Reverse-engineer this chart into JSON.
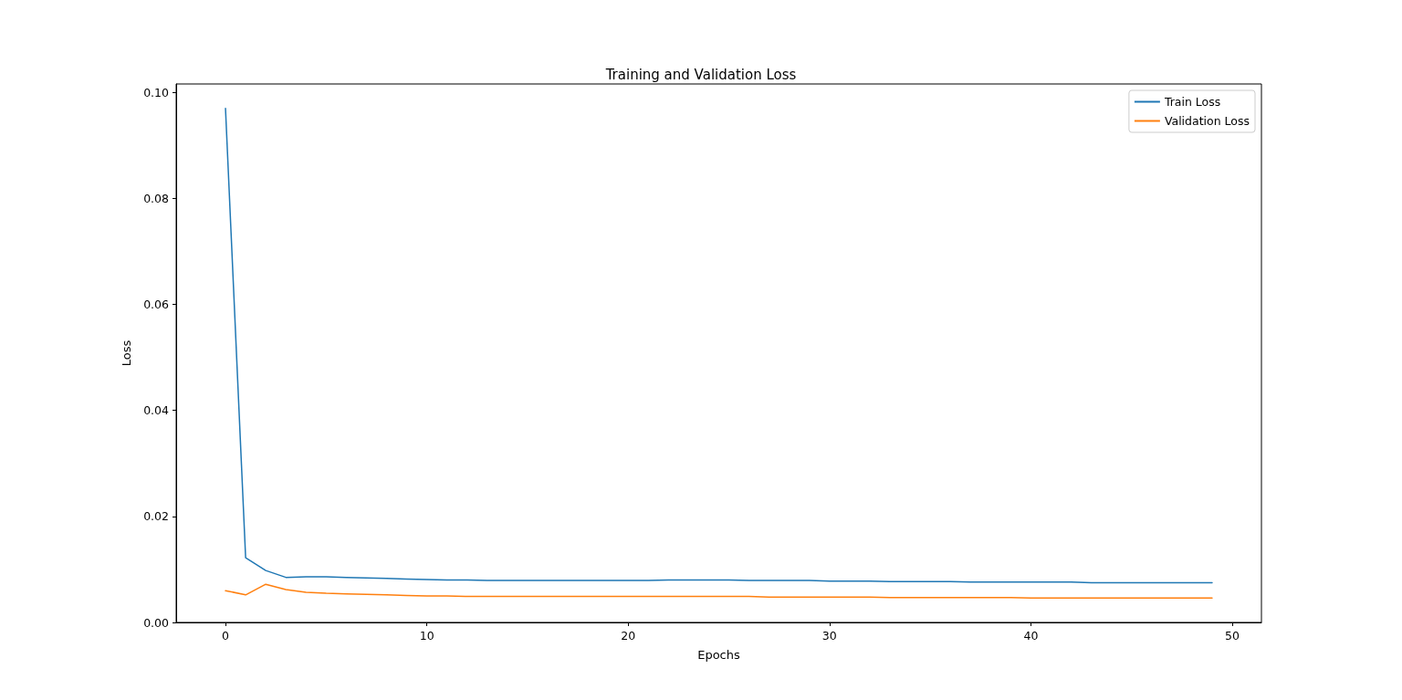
{
  "chart_data": {
    "type": "line",
    "title": "Training and Validation Loss",
    "xlabel": "Epochs",
    "ylabel": "Loss",
    "x": [
      0,
      1,
      2,
      3,
      4,
      5,
      6,
      7,
      8,
      9,
      10,
      11,
      12,
      13,
      14,
      15,
      16,
      17,
      18,
      19,
      20,
      21,
      22,
      23,
      24,
      25,
      26,
      27,
      28,
      29,
      30,
      31,
      32,
      33,
      34,
      35,
      36,
      37,
      38,
      39,
      40,
      41,
      42,
      43,
      44,
      45,
      46,
      47,
      48,
      49
    ],
    "series": [
      {
        "name": "Train Loss",
        "color": "#1f77b4",
        "values": [
          0.097,
          0.0122,
          0.0098,
          0.0085,
          0.0086,
          0.0086,
          0.0085,
          0.0084,
          0.0083,
          0.0082,
          0.0081,
          0.008,
          0.008,
          0.0079,
          0.0079,
          0.0079,
          0.0079,
          0.0079,
          0.0079,
          0.0079,
          0.0079,
          0.0079,
          0.008,
          0.008,
          0.008,
          0.008,
          0.0079,
          0.0079,
          0.0079,
          0.0079,
          0.0078,
          0.0078,
          0.0078,
          0.0077,
          0.0077,
          0.0077,
          0.0077,
          0.0076,
          0.0076,
          0.0076,
          0.0076,
          0.0076,
          0.0076,
          0.0075,
          0.0075,
          0.0075,
          0.0075,
          0.0075,
          0.0075,
          0.0075
        ]
      },
      {
        "name": "Validation Loss",
        "color": "#ff7f0e",
        "values": [
          0.006,
          0.0052,
          0.0072,
          0.0062,
          0.0057,
          0.0055,
          0.0054,
          0.0053,
          0.0052,
          0.0051,
          0.005,
          0.005,
          0.0049,
          0.0049,
          0.0049,
          0.0049,
          0.0049,
          0.0049,
          0.0049,
          0.0049,
          0.0049,
          0.0049,
          0.0049,
          0.0049,
          0.0049,
          0.0049,
          0.0049,
          0.0048,
          0.0048,
          0.0048,
          0.0048,
          0.0048,
          0.0048,
          0.0047,
          0.0047,
          0.0047,
          0.0047,
          0.0047,
          0.0047,
          0.0047,
          0.0046,
          0.0046,
          0.0046,
          0.0046,
          0.0046,
          0.0046,
          0.0046,
          0.0046,
          0.0046,
          0.0046
        ]
      }
    ],
    "xlim": [
      -2.45,
      51.45
    ],
    "xticks": [
      0,
      10,
      20,
      30,
      40,
      50
    ],
    "ylim": [
      0,
      0.1016
    ],
    "yticks": [
      {
        "value": 0,
        "label": "0.00"
      },
      {
        "value": 0.02,
        "label": "0.02"
      },
      {
        "value": 0.04,
        "label": "0.04"
      },
      {
        "value": 0.06,
        "label": "0.06"
      },
      {
        "value": 0.08,
        "label": "0.08"
      },
      {
        "value": 0.1,
        "label": "0.10"
      }
    ],
    "legend": "top right",
    "grid": false,
    "marker": "none",
    "line_style": "solid"
  }
}
